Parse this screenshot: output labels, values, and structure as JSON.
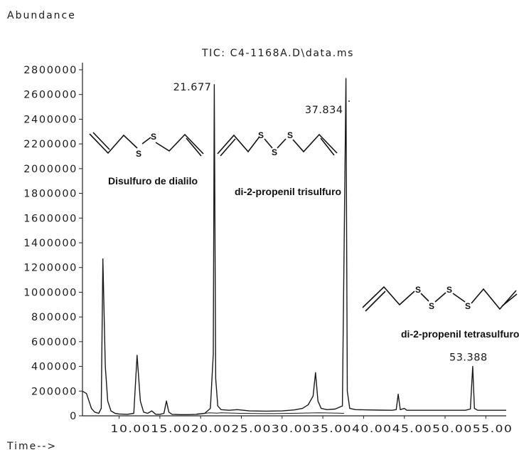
{
  "chart_data": {
    "type": "line",
    "title": "TIC: C4-1168A.D\\data.ms",
    "ylabel": "Abundance",
    "xlabel": "Time-->",
    "ylim": [
      0,
      2800000
    ],
    "xlim": [
      5.5,
      57.5
    ],
    "y_ticks": [
      "2800000",
      "2600000",
      "2400000",
      "2200000",
      "2000000",
      "1800000",
      "1600000",
      "1400000",
      "1200000",
      "1000000",
      "800000",
      "600000",
      "400000",
      "200000",
      "0"
    ],
    "y_tick_values": [
      2800000,
      2600000,
      2400000,
      2200000,
      2000000,
      1800000,
      1600000,
      1400000,
      1200000,
      1000000,
      800000,
      600000,
      400000,
      200000,
      0
    ],
    "x_tick_values": [
      10,
      15,
      20,
      25,
      30,
      35,
      40,
      45,
      50,
      55
    ],
    "x_tick_labels_text": "10.0015.0020.0025.0030.0035.0040.0045.0050.0055.00",
    "peak_labels": [
      {
        "label": "21.677",
        "x": 21.677
      },
      {
        "label": "37.834",
        "x": 37.834
      },
      {
        "label": "53.388",
        "x": 53.388
      }
    ],
    "series": [
      {
        "points": [
          [
            5.5,
            200000
          ],
          [
            6.0,
            180000
          ],
          [
            6.6,
            60000
          ],
          [
            7.0,
            30000
          ],
          [
            7.5,
            20000
          ],
          [
            7.8,
            60000
          ],
          [
            8.0,
            1270000
          ],
          [
            8.3,
            400000
          ],
          [
            8.6,
            120000
          ],
          [
            9.0,
            40000
          ],
          [
            9.5,
            20000
          ],
          [
            10.0,
            15000
          ],
          [
            11.0,
            12000
          ],
          [
            11.8,
            20000
          ],
          [
            12.2,
            490000
          ],
          [
            12.6,
            120000
          ],
          [
            13.0,
            30000
          ],
          [
            13.5,
            20000
          ],
          [
            14.0,
            40000
          ],
          [
            14.5,
            12000
          ],
          [
            15.0,
            12000
          ],
          [
            15.5,
            20000
          ],
          [
            15.8,
            120000
          ],
          [
            16.1,
            30000
          ],
          [
            16.5,
            12000
          ],
          [
            17.5,
            10000
          ],
          [
            18.5,
            10000
          ],
          [
            19.5,
            12000
          ],
          [
            20.5,
            20000
          ],
          [
            21.2,
            60000
          ],
          [
            21.55,
            500000
          ],
          [
            21.677,
            2680000
          ],
          [
            21.85,
            300000
          ],
          [
            22.1,
            80000
          ],
          [
            22.5,
            50000
          ],
          [
            23.5,
            45000
          ],
          [
            24.5,
            50000
          ],
          [
            26.0,
            40000
          ],
          [
            28.0,
            38000
          ],
          [
            30.0,
            40000
          ],
          [
            31.5,
            48000
          ],
          [
            32.5,
            60000
          ],
          [
            33.2,
            90000
          ],
          [
            33.8,
            160000
          ],
          [
            34.1,
            350000
          ],
          [
            34.4,
            120000
          ],
          [
            34.8,
            60000
          ],
          [
            35.5,
            50000
          ],
          [
            36.5,
            55000
          ],
          [
            37.4,
            80000
          ],
          [
            37.834,
            2730000
          ],
          [
            38.0,
            200000
          ],
          [
            38.3,
            60000
          ],
          [
            39.0,
            50000
          ],
          [
            40.5,
            48000
          ],
          [
            42.0,
            46000
          ],
          [
            43.5,
            45000
          ],
          [
            44.0,
            50000
          ],
          [
            44.25,
            175000
          ],
          [
            44.5,
            50000
          ],
          [
            45.0,
            60000
          ],
          [
            45.3,
            45000
          ],
          [
            46.5,
            45000
          ],
          [
            48.5,
            45000
          ],
          [
            50.5,
            45000
          ],
          [
            52.5,
            45000
          ],
          [
            53.1,
            55000
          ],
          [
            53.388,
            400000
          ],
          [
            53.6,
            60000
          ],
          [
            54.0,
            45000
          ],
          [
            55.5,
            45000
          ],
          [
            57.5,
            45000
          ]
        ]
      },
      {
        "points": [
          [
            19.5,
            15000
          ],
          [
            20.5,
            20000
          ],
          [
            21.1,
            25000
          ],
          [
            22.0,
            22000
          ],
          [
            22.5,
            25000
          ],
          [
            25.0,
            20000
          ],
          [
            28.0,
            18000
          ],
          [
            31.0,
            20000
          ],
          [
            34.5,
            25000
          ],
          [
            37.0,
            22000
          ],
          [
            37.6,
            20000
          ]
        ]
      }
    ]
  },
  "structures": [
    {
      "label": "Disulfuro de dialilo",
      "atoms": [
        "S",
        "S"
      ]
    },
    {
      "label": "di-2-propenil trisulfuro",
      "atoms": [
        "S",
        "S",
        "S"
      ]
    },
    {
      "label": "di-2-propenil tetrasulfuro",
      "atoms": [
        "S",
        "S",
        "S",
        "S"
      ]
    }
  ]
}
